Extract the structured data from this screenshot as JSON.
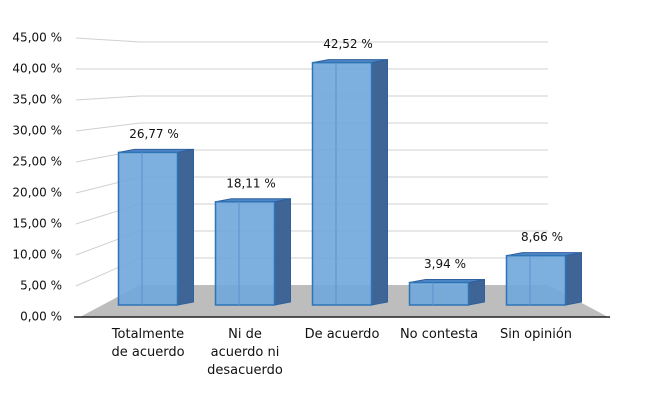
{
  "chart_data": {
    "type": "bar3d",
    "categories": [
      "Totalmente de acuerdo",
      "Ni de acuerdo ni desacuerdo",
      "De acuerdo",
      "No contesta",
      "Sin opinión"
    ],
    "values": [
      26.77,
      18.11,
      42.52,
      3.94,
      8.66
    ],
    "value_labels": [
      "26,77 %",
      "18,11 %",
      "42,52 %",
      "3,94 %",
      "8,66 %"
    ],
    "color": "#6fa6dc",
    "ylim": [
      0,
      45
    ],
    "yticks": [
      {
        "value": 0,
        "label": "0,00 %"
      },
      {
        "value": 5,
        "label": "5,00 %"
      },
      {
        "value": 10,
        "label": "10,00 %"
      },
      {
        "value": 15,
        "label": "15,00 %"
      },
      {
        "value": 20,
        "label": "20,00 %"
      },
      {
        "value": 25,
        "label": "25,00 %"
      },
      {
        "value": 30,
        "label": "30,00 %"
      },
      {
        "value": 35,
        "label": "35,00 %"
      },
      {
        "value": 40,
        "label": "40,00 %"
      },
      {
        "value": 45,
        "label": "45,00 %"
      }
    ],
    "grid": true
  }
}
